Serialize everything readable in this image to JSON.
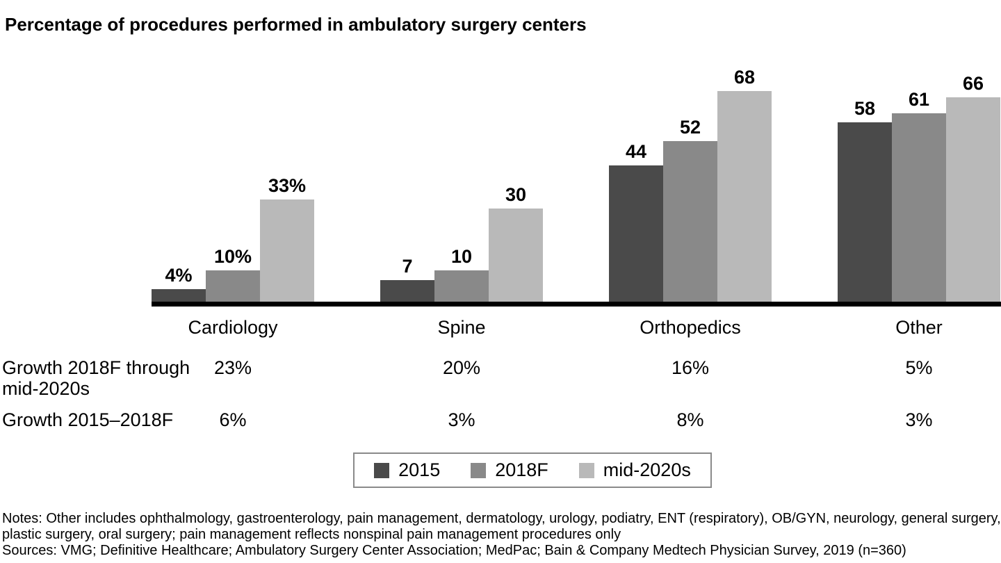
{
  "title": "Percentage of procedures performed in ambulatory surgery centers",
  "chart_data": {
    "type": "bar",
    "title": "Percentage of procedures performed in ambulatory surgery centers",
    "categories": [
      "Cardiology",
      "Spine",
      "Orthopedics",
      "Other"
    ],
    "series": [
      {
        "name": "2015",
        "color": "#4a4a4a",
        "values": [
          4,
          7,
          44,
          58
        ],
        "display_labels": [
          "4%",
          "7",
          "44",
          "58"
        ]
      },
      {
        "name": "2018F",
        "color": "#898989",
        "values": [
          10,
          10,
          52,
          61
        ],
        "display_labels": [
          "10%",
          "10",
          "52",
          "61"
        ]
      },
      {
        "name": "mid-2020s",
        "color": "#b9b9b9",
        "values": [
          33,
          30,
          68,
          66
        ],
        "display_labels": [
          "33%",
          "30",
          "68",
          "66"
        ]
      }
    ],
    "unit": "percent",
    "ylim": [
      0,
      70
    ],
    "grid": false,
    "legend_position": "bottom",
    "axis_color": "#000000",
    "value_labels_bold": true
  },
  "growth_table": {
    "rows": [
      {
        "label": "Growth 2018F through mid-2020s",
        "values": [
          "23%",
          "20%",
          "16%",
          "5%"
        ]
      },
      {
        "label": "Growth 2015–2018F",
        "values": [
          "6%",
          "3%",
          "8%",
          "3%"
        ]
      }
    ]
  },
  "legend": {
    "items": [
      {
        "label": "2015",
        "color": "#4a4a4a"
      },
      {
        "label": "2018F",
        "color": "#898989"
      },
      {
        "label": "mid-2020s",
        "color": "#b9b9b9"
      }
    ]
  },
  "footer": {
    "notes": "Notes: Other includes ophthalmology, gastroenterology, pain management, dermatology, urology, podiatry, ENT (respiratory), OB/GYN, neurology, general surgery, plastic surgery, oral surgery; pain management reflects nonspinal pain management procedures only",
    "sources": "Sources: VMG; Definitive Healthcare; Ambulatory Surgery Center Association; MedPac; Bain & Company Medtech Physician Survey, 2019 (n=360)"
  }
}
